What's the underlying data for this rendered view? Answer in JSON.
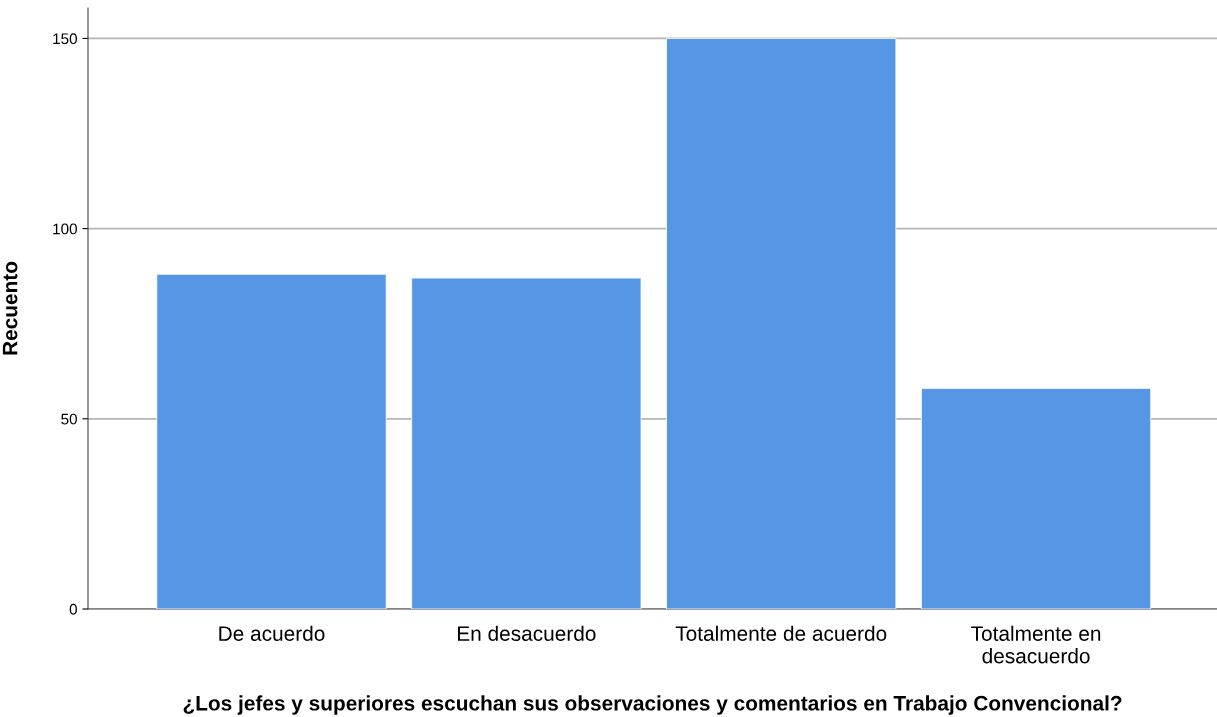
{
  "chart_data": {
    "type": "bar",
    "xlabel": "¿Los jefes y superiores escuchan sus observaciones y comentarios en Trabajo Convencional?",
    "ylabel": "Recuento",
    "categories": [
      "De acuerdo",
      "En desacuerdo",
      "Totalmente de acuerdo",
      "Totalmente en\ndesacuerdo"
    ],
    "values": [
      88,
      87,
      150,
      58
    ],
    "color": "#5596e5",
    "ylim": [
      0,
      158
    ],
    "yticks": [
      0,
      50,
      100,
      150
    ],
    "grid": "y"
  }
}
